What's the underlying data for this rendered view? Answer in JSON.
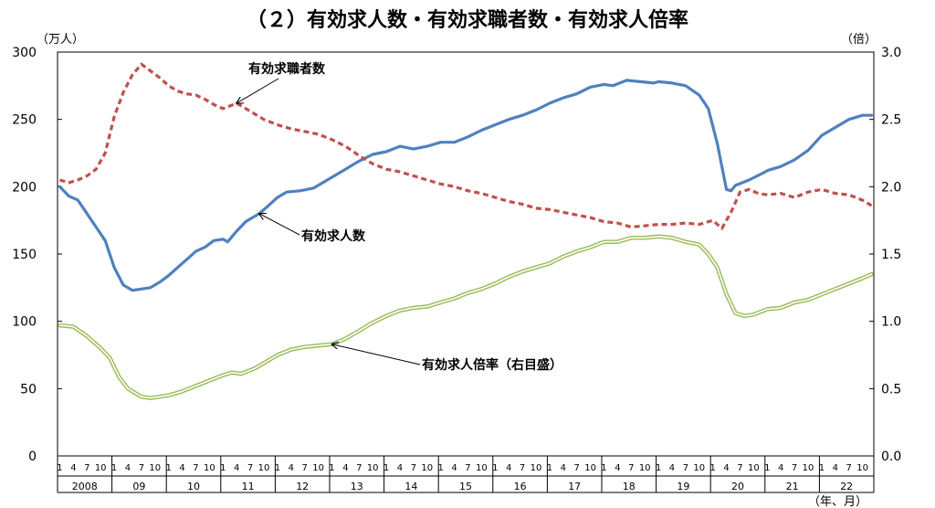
{
  "chart_data": {
    "type": "line",
    "title": "（２）有効求人数・有効求職者数・有効求人倍率",
    "left_unit": "（万人）",
    "right_unit": "（倍）",
    "x_unit": "（年、月）",
    "left_ylim": [
      0,
      300
    ],
    "right_ylim": [
      0,
      3
    ],
    "left_ticks": [
      "0",
      "50",
      "100",
      "150",
      "200",
      "250",
      "300"
    ],
    "right_ticks": [
      "0.0",
      "0.5",
      "1.0",
      "1.5",
      "2.0",
      "2.5",
      "3.0"
    ],
    "month_ticks": [
      "1",
      "4",
      "7",
      "10"
    ],
    "years": [
      "2008",
      "09",
      "10",
      "11",
      "12",
      "13",
      "14",
      "15",
      "16",
      "17",
      "18",
      "19",
      "20",
      "21",
      "22"
    ],
    "grid": false,
    "series": [
      {
        "name": "有効求人数",
        "axis": "left",
        "color": "#4f81bd",
        "style": "solid",
        "points": [
          [
            "2008-01",
            200
          ],
          [
            "2008-03",
            193
          ],
          [
            "2008-05",
            190
          ],
          [
            "2008-07",
            180
          ],
          [
            "2008-09",
            170
          ],
          [
            "2008-11",
            160
          ],
          [
            "2009-01",
            140
          ],
          [
            "2009-03",
            127
          ],
          [
            "2009-05",
            123
          ],
          [
            "2009-07",
            124
          ],
          [
            "2009-09",
            125
          ],
          [
            "2009-11",
            129
          ],
          [
            "2010-01",
            134
          ],
          [
            "2010-03",
            140
          ],
          [
            "2010-05",
            146
          ],
          [
            "2010-07",
            152
          ],
          [
            "2010-09",
            155
          ],
          [
            "2010-11",
            160
          ],
          [
            "2011-01",
            161
          ],
          [
            "2011-02",
            159
          ],
          [
            "2011-04",
            167
          ],
          [
            "2011-06",
            174
          ],
          [
            "2011-09",
            180
          ],
          [
            "2011-11",
            186
          ],
          [
            "2012-01",
            192
          ],
          [
            "2012-03",
            196
          ],
          [
            "2012-06",
            197
          ],
          [
            "2012-09",
            199
          ],
          [
            "2012-11",
            203
          ],
          [
            "2013-01",
            207
          ],
          [
            "2013-04",
            213
          ],
          [
            "2013-07",
            219
          ],
          [
            "2013-10",
            224
          ],
          [
            "2014-01",
            226
          ],
          [
            "2014-04",
            230
          ],
          [
            "2014-07",
            228
          ],
          [
            "2014-10",
            230
          ],
          [
            "2015-01",
            233
          ],
          [
            "2015-04",
            233
          ],
          [
            "2015-07",
            237
          ],
          [
            "2015-10",
            242
          ],
          [
            "2016-01",
            246
          ],
          [
            "2016-04",
            250
          ],
          [
            "2016-07",
            253
          ],
          [
            "2016-10",
            257
          ],
          [
            "2017-01",
            262
          ],
          [
            "2017-04",
            266
          ],
          [
            "2017-07",
            269
          ],
          [
            "2017-10",
            274
          ],
          [
            "2018-01",
            276
          ],
          [
            "2018-03",
            275
          ],
          [
            "2018-06",
            279
          ],
          [
            "2018-09",
            278
          ],
          [
            "2018-12",
            277
          ],
          [
            "2019-01",
            278
          ],
          [
            "2019-04",
            277
          ],
          [
            "2019-07",
            275
          ],
          [
            "2019-10",
            268
          ],
          [
            "2019-12",
            258
          ],
          [
            "2020-02",
            232
          ],
          [
            "2020-04",
            198
          ],
          [
            "2020-05",
            197
          ],
          [
            "2020-06",
            201
          ],
          [
            "2020-09",
            205
          ],
          [
            "2020-12",
            210
          ],
          [
            "2021-01",
            212
          ],
          [
            "2021-04",
            215
          ],
          [
            "2021-07",
            220
          ],
          [
            "2021-10",
            227
          ],
          [
            "2022-01",
            238
          ],
          [
            "2022-04",
            244
          ],
          [
            "2022-07",
            250
          ],
          [
            "2022-10",
            253
          ],
          [
            "2022-12",
            253
          ]
        ]
      },
      {
        "name": "有効求職者数",
        "axis": "left",
        "color": "#c0504d",
        "style": "dashed",
        "points": [
          [
            "2008-01",
            205
          ],
          [
            "2008-03",
            203
          ],
          [
            "2008-05",
            205
          ],
          [
            "2008-07",
            208
          ],
          [
            "2008-09",
            213
          ],
          [
            "2008-11",
            225
          ],
          [
            "2009-01",
            252
          ],
          [
            "2009-03",
            270
          ],
          [
            "2009-05",
            283
          ],
          [
            "2009-07",
            291
          ],
          [
            "2009-09",
            286
          ],
          [
            "2009-11",
            281
          ],
          [
            "2010-01",
            275
          ],
          [
            "2010-03",
            271
          ],
          [
            "2010-05",
            269
          ],
          [
            "2010-07",
            268
          ],
          [
            "2010-09",
            265
          ],
          [
            "2010-11",
            261
          ],
          [
            "2011-01",
            258
          ],
          [
            "2011-04",
            262
          ],
          [
            "2011-07",
            256
          ],
          [
            "2011-10",
            250
          ],
          [
            "2012-01",
            246
          ],
          [
            "2012-04",
            243
          ],
          [
            "2012-07",
            241
          ],
          [
            "2012-10",
            239
          ],
          [
            "2013-01",
            235
          ],
          [
            "2013-04",
            230
          ],
          [
            "2013-07",
            223
          ],
          [
            "2013-10",
            217
          ],
          [
            "2014-01",
            213
          ],
          [
            "2014-04",
            211
          ],
          [
            "2014-07",
            208
          ],
          [
            "2014-10",
            205
          ],
          [
            "2015-01",
            202
          ],
          [
            "2015-04",
            200
          ],
          [
            "2015-07",
            197
          ],
          [
            "2015-10",
            195
          ],
          [
            "2016-01",
            192
          ],
          [
            "2016-04",
            189
          ],
          [
            "2016-07",
            187
          ],
          [
            "2016-10",
            184
          ],
          [
            "2017-01",
            183
          ],
          [
            "2017-04",
            181
          ],
          [
            "2017-07",
            179
          ],
          [
            "2017-10",
            177
          ],
          [
            "2018-01",
            174
          ],
          [
            "2018-04",
            173
          ],
          [
            "2018-07",
            170
          ],
          [
            "2018-10",
            171
          ],
          [
            "2019-01",
            172
          ],
          [
            "2019-04",
            172
          ],
          [
            "2019-07",
            173
          ],
          [
            "2019-10",
            172
          ],
          [
            "2020-01",
            175
          ],
          [
            "2020-03",
            169
          ],
          [
            "2020-05",
            181
          ],
          [
            "2020-07",
            196
          ],
          [
            "2020-09",
            198
          ],
          [
            "2020-11",
            195
          ],
          [
            "2021-01",
            194
          ],
          [
            "2021-04",
            195
          ],
          [
            "2021-07",
            192
          ],
          [
            "2021-10",
            196
          ],
          [
            "2022-01",
            198
          ],
          [
            "2022-04",
            195
          ],
          [
            "2022-07",
            194
          ],
          [
            "2022-10",
            190
          ],
          [
            "2022-12",
            186
          ]
        ]
      },
      {
        "name": "有効求人倍率（右目盛）",
        "axis": "right",
        "color": "#9bbb59",
        "style": "double",
        "points": [
          [
            "2008-01",
            0.97
          ],
          [
            "2008-04",
            0.96
          ],
          [
            "2008-07",
            0.89
          ],
          [
            "2008-10",
            0.8
          ],
          [
            "2008-12",
            0.73
          ],
          [
            "2009-02",
            0.59
          ],
          [
            "2009-04",
            0.5
          ],
          [
            "2009-07",
            0.44
          ],
          [
            "2009-09",
            0.43
          ],
          [
            "2009-11",
            0.44
          ],
          [
            "2010-01",
            0.45
          ],
          [
            "2010-04",
            0.48
          ],
          [
            "2010-07",
            0.52
          ],
          [
            "2010-10",
            0.56
          ],
          [
            "2011-01",
            0.6
          ],
          [
            "2011-03",
            0.62
          ],
          [
            "2011-05",
            0.61
          ],
          [
            "2011-08",
            0.65
          ],
          [
            "2011-11",
            0.71
          ],
          [
            "2012-01",
            0.75
          ],
          [
            "2012-04",
            0.79
          ],
          [
            "2012-07",
            0.81
          ],
          [
            "2012-10",
            0.82
          ],
          [
            "2013-01",
            0.83
          ],
          [
            "2013-04",
            0.87
          ],
          [
            "2013-07",
            0.93
          ],
          [
            "2013-10",
            0.99
          ],
          [
            "2014-01",
            1.04
          ],
          [
            "2014-04",
            1.08
          ],
          [
            "2014-07",
            1.1
          ],
          [
            "2014-10",
            1.11
          ],
          [
            "2015-01",
            1.14
          ],
          [
            "2015-04",
            1.17
          ],
          [
            "2015-07",
            1.21
          ],
          [
            "2015-10",
            1.24
          ],
          [
            "2016-01",
            1.28
          ],
          [
            "2016-04",
            1.33
          ],
          [
            "2016-07",
            1.37
          ],
          [
            "2016-10",
            1.4
          ],
          [
            "2017-01",
            1.43
          ],
          [
            "2017-04",
            1.48
          ],
          [
            "2017-07",
            1.52
          ],
          [
            "2017-10",
            1.55
          ],
          [
            "2018-01",
            1.59
          ],
          [
            "2018-04",
            1.59
          ],
          [
            "2018-07",
            1.62
          ],
          [
            "2018-10",
            1.62
          ],
          [
            "2019-01",
            1.63
          ],
          [
            "2019-04",
            1.62
          ],
          [
            "2019-07",
            1.59
          ],
          [
            "2019-10",
            1.57
          ],
          [
            "2019-12",
            1.5
          ],
          [
            "2020-02",
            1.4
          ],
          [
            "2020-04",
            1.2
          ],
          [
            "2020-06",
            1.06
          ],
          [
            "2020-08",
            1.04
          ],
          [
            "2020-10",
            1.05
          ],
          [
            "2021-01",
            1.09
          ],
          [
            "2021-04",
            1.1
          ],
          [
            "2021-07",
            1.14
          ],
          [
            "2021-10",
            1.16
          ],
          [
            "2022-01",
            1.2
          ],
          [
            "2022-04",
            1.24
          ],
          [
            "2022-07",
            1.28
          ],
          [
            "2022-10",
            1.32
          ],
          [
            "2022-12",
            1.35
          ]
        ]
      }
    ],
    "annotations": [
      {
        "text": "有効求職者数",
        "series": 1,
        "at": "2011-04"
      },
      {
        "text": "有効求人数",
        "series": 0,
        "at": "2011-09"
      },
      {
        "text": "有効求人倍率（右目盛）",
        "series": 2,
        "at": "2013-01"
      }
    ]
  }
}
